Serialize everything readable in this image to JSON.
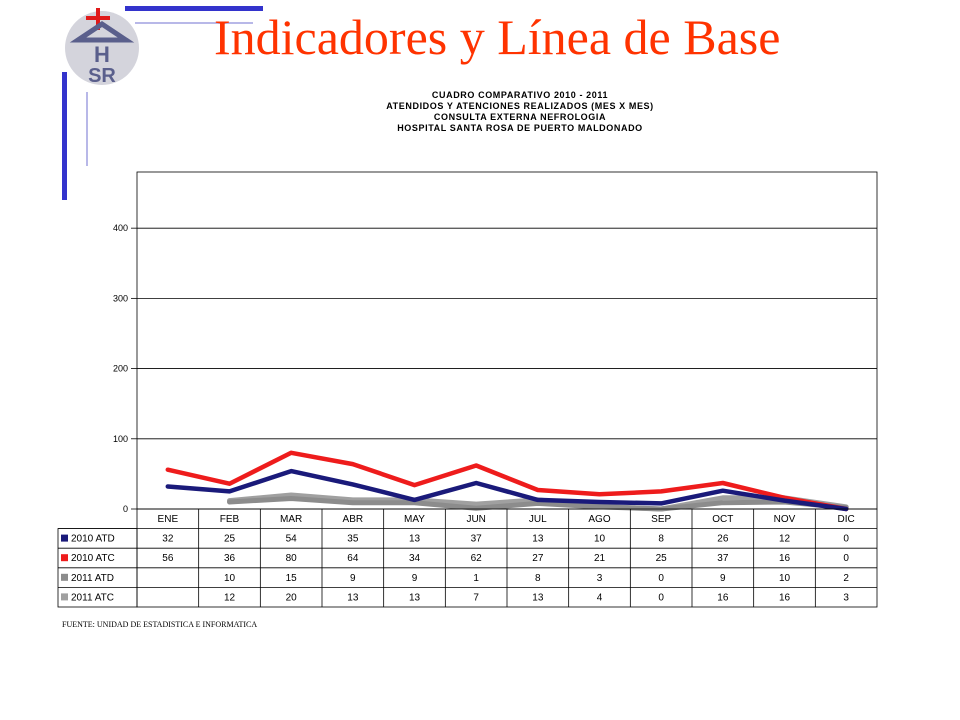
{
  "title": "Indicadores y Línea de Base",
  "logo": {
    "line1": "H",
    "line2": "SR"
  },
  "source": "FUENTE: UNIDAD DE ESTADISTICA E INFORMATICA",
  "chart_data": {
    "type": "line",
    "title_lines": [
      "CUADRO COMPARATIVO 2010 - 2011",
      "ATENDIDOS Y ATENCIONES REALIZADOS (MES X MES)",
      "CONSULTA EXTERNA NEFROLOGIA",
      "HOSPITAL SANTA ROSA DE PUERTO MALDONADO"
    ],
    "categories": [
      "ENE",
      "FEB",
      "MAR",
      "ABR",
      "MAY",
      "JUN",
      "JUL",
      "AGO",
      "SEP",
      "OCT",
      "NOV",
      "DIC"
    ],
    "ylim": [
      0,
      480
    ],
    "yticks": [
      0,
      100,
      200,
      300,
      400
    ],
    "grid": true,
    "legend": "table-bottom",
    "series": [
      {
        "name": "2010 ATD",
        "color": "#1a1a7a",
        "values": [
          32,
          25,
          54,
          35,
          13,
          37,
          13,
          10,
          8,
          26,
          12,
          0
        ],
        "table": [
          "32",
          "25",
          "54",
          "35",
          "13",
          "37",
          "13",
          "10",
          "8",
          "26",
          "12",
          "0"
        ]
      },
      {
        "name": "2010 ATC",
        "color": "#ee1c1c",
        "values": [
          56,
          36,
          80,
          64,
          34,
          62,
          27,
          21,
          25,
          37,
          16,
          0
        ],
        "table": [
          "56",
          "36",
          "80",
          "64",
          "34",
          "62",
          "27",
          "21",
          "25",
          "37",
          "16",
          "0"
        ]
      },
      {
        "name": "2011 ATD",
        "color": "#8c8c8c",
        "values": [
          null,
          10,
          15,
          9,
          9,
          1,
          8,
          3,
          0,
          9,
          10,
          2
        ],
        "table": [
          "",
          "10",
          "15",
          "9",
          "9",
          "1",
          "8",
          "3",
          "0",
          "9",
          "10",
          "2"
        ]
      },
      {
        "name": "2011 ATC",
        "color": "#a0a0a0",
        "values": [
          null,
          12,
          20,
          13,
          13,
          7,
          13,
          4,
          0,
          16,
          16,
          3
        ],
        "table": [
          "",
          "12",
          "20",
          "13",
          "13",
          "7",
          "13",
          "4",
          "0",
          "16",
          "16",
          "3"
        ]
      }
    ]
  }
}
